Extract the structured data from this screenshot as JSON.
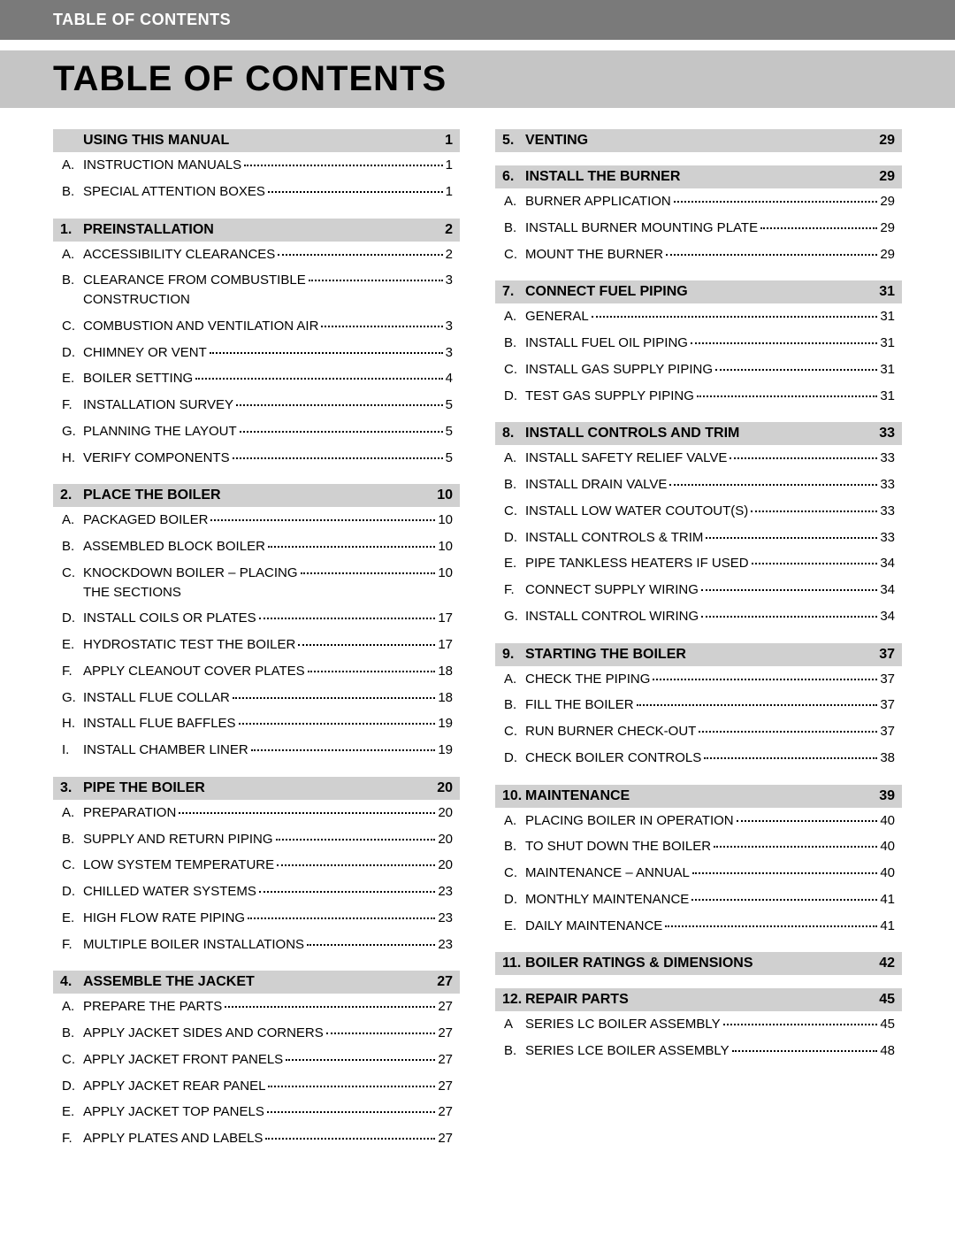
{
  "header": "TABLE OF CONTENTS",
  "title": "TABLE OF CONTENTS",
  "colors": {
    "header_bg": "#7a7a7a",
    "title_bg": "#c5c5c5",
    "section_bg": "#d0d0d0",
    "text": "#000000",
    "header_text": "#ffffff"
  },
  "columns": [
    [
      {
        "num": "",
        "title": "USING THIS MANUAL",
        "page": "1",
        "items": [
          {
            "l": "A.",
            "t": "INSTRUCTION MANUALS",
            "p": "1"
          },
          {
            "l": "B.",
            "t": "SPECIAL ATTENTION BOXES",
            "p": "1"
          }
        ]
      },
      {
        "num": "1.",
        "title": "PREINSTALLATION",
        "page": "2",
        "items": [
          {
            "l": "A.",
            "t": "ACCESSIBILITY CLEARANCES",
            "p": "2"
          },
          {
            "l": "B.",
            "t": "CLEARANCE FROM COMBUSTIBLE\nCONSTRUCTION",
            "p": "3"
          },
          {
            "l": "C.",
            "t": "COMBUSTION AND VENTILATION AIR",
            "p": "3"
          },
          {
            "l": "D.",
            "t": "CHIMNEY OR VENT",
            "p": "3"
          },
          {
            "l": "E.",
            "t": "BOILER SETTING",
            "p": "4"
          },
          {
            "l": "F.",
            "t": "INSTALLATION SURVEY",
            "p": "5"
          },
          {
            "l": "G.",
            "t": "PLANNING THE LAYOUT",
            "p": "5"
          },
          {
            "l": "H.",
            "t": "VERIFY COMPONENTS",
            "p": "5"
          }
        ]
      },
      {
        "num": "2.",
        "title": "PLACE THE BOILER",
        "page": "10",
        "items": [
          {
            "l": "A.",
            "t": "PACKAGED BOILER",
            "p": "10"
          },
          {
            "l": "B.",
            "t": "ASSEMBLED BLOCK BOILER",
            "p": "10"
          },
          {
            "l": "C.",
            "t": "KNOCKDOWN BOILER – PLACING\nTHE SECTIONS",
            "p": "10"
          },
          {
            "l": "D.",
            "t": "INSTALL COILS OR PLATES",
            "p": "17"
          },
          {
            "l": "E.",
            "t": "HYDROSTATIC TEST THE BOILER",
            "p": "17"
          },
          {
            "l": "F.",
            "t": "APPLY CLEANOUT COVER PLATES",
            "p": "18"
          },
          {
            "l": "G.",
            "t": "INSTALL FLUE COLLAR",
            "p": "18"
          },
          {
            "l": "H.",
            "t": "INSTALL FLUE BAFFLES",
            "p": "19"
          },
          {
            "l": "I.",
            "t": "INSTALL CHAMBER LINER",
            "p": "19"
          }
        ]
      },
      {
        "num": "3.",
        "title": "PIPE THE BOILER",
        "page": "20",
        "items": [
          {
            "l": "A.",
            "t": "PREPARATION",
            "p": "20"
          },
          {
            "l": "B.",
            "t": "SUPPLY AND RETURN PIPING",
            "p": "20"
          },
          {
            "l": "C.",
            "t": "LOW SYSTEM TEMPERATURE",
            "p": "20"
          },
          {
            "l": "D.",
            "t": "CHILLED WATER SYSTEMS",
            "p": "23"
          },
          {
            "l": "E.",
            "t": "HIGH FLOW RATE PIPING",
            "p": "23"
          },
          {
            "l": "F.",
            "t": "MULTIPLE BOILER INSTALLATIONS",
            "p": "23"
          }
        ]
      },
      {
        "num": "4.",
        "title": "ASSEMBLE THE JACKET",
        "page": "27",
        "items": [
          {
            "l": "A.",
            "t": "PREPARE THE PARTS",
            "p": "27"
          },
          {
            "l": "B.",
            "t": "APPLY JACKET SIDES AND CORNERS",
            "p": "27"
          },
          {
            "l": "C.",
            "t": "APPLY JACKET FRONT PANELS",
            "p": "27"
          },
          {
            "l": "D.",
            "t": "APPLY JACKET REAR PANEL",
            "p": "27"
          },
          {
            "l": "E.",
            "t": "APPLY JACKET TOP PANELS",
            "p": "27"
          },
          {
            "l": "F.",
            "t": "APPLY PLATES AND LABELS",
            "p": "27"
          }
        ]
      }
    ],
    [
      {
        "num": "5.",
        "title": "VENTING",
        "page": "29",
        "items": []
      },
      {
        "num": "6.",
        "title": "INSTALL THE BURNER",
        "page": "29",
        "items": [
          {
            "l": "A.",
            "t": "BURNER APPLICATION",
            "p": "29"
          },
          {
            "l": "B.",
            "t": "INSTALL BURNER MOUNTING PLATE",
            "p": "29"
          },
          {
            "l": "C.",
            "t": "MOUNT THE BURNER",
            "p": "29"
          }
        ]
      },
      {
        "num": "7.",
        "title": "CONNECT FUEL PIPING",
        "page": "31",
        "items": [
          {
            "l": "A.",
            "t": "GENERAL",
            "p": "31"
          },
          {
            "l": "B.",
            "t": "INSTALL FUEL OIL PIPING",
            "p": "31"
          },
          {
            "l": "C.",
            "t": "INSTALL GAS SUPPLY PIPING",
            "p": "31"
          },
          {
            "l": "D.",
            "t": "TEST GAS SUPPLY PIPING",
            "p": "31"
          }
        ]
      },
      {
        "num": "8.",
        "title": "INSTALL CONTROLS AND TRIM",
        "page": "33",
        "items": [
          {
            "l": "A.",
            "t": "INSTALL SAFETY RELIEF VALVE",
            "p": "33"
          },
          {
            "l": "B.",
            "t": "INSTALL DRAIN VALVE",
            "p": "33"
          },
          {
            "l": "C.",
            "t": "INSTALL LOW WATER COUTOUT(S)",
            "p": "33"
          },
          {
            "l": "D.",
            "t": "INSTALL CONTROLS & TRIM",
            "p": "33"
          },
          {
            "l": "E.",
            "t": "PIPE TANKLESS HEATERS IF USED",
            "p": "34"
          },
          {
            "l": "F.",
            "t": "CONNECT SUPPLY WIRING",
            "p": "34"
          },
          {
            "l": "G.",
            "t": "INSTALL CONTROL WIRING",
            "p": "34"
          }
        ]
      },
      {
        "num": "9.",
        "title": "STARTING THE BOILER",
        "page": "37",
        "items": [
          {
            "l": "A.",
            "t": "CHECK THE PIPING",
            "p": "37"
          },
          {
            "l": "B.",
            "t": "FILL THE BOILER",
            "p": "37"
          },
          {
            "l": "C.",
            "t": "RUN BURNER CHECK-OUT",
            "p": "37"
          },
          {
            "l": "D.",
            "t": "CHECK BOILER CONTROLS",
            "p": "38"
          }
        ]
      },
      {
        "num": "10.",
        "title": "MAINTENANCE",
        "page": "39",
        "items": [
          {
            "l": "A.",
            "t": "PLACING BOILER IN OPERATION",
            "p": "40"
          },
          {
            "l": "B.",
            "t": "TO SHUT DOWN THE BOILER",
            "p": "40"
          },
          {
            "l": "C.",
            "t": "MAINTENANCE – ANNUAL",
            "p": "40"
          },
          {
            "l": "D.",
            "t": "MONTHLY MAINTENANCE",
            "p": "41"
          },
          {
            "l": "E.",
            "t": "DAILY MAINTENANCE",
            "p": "41"
          }
        ]
      },
      {
        "num": "11.",
        "title": "BOILER RATINGS & DIMENSIONS",
        "page": "42",
        "items": []
      },
      {
        "num": "12.",
        "title": "REPAIR PARTS",
        "page": "45",
        "items": [
          {
            "l": "A",
            "t": "SERIES LC BOILER ASSEMBLY",
            "p": "45"
          },
          {
            "l": "B.",
            "t": "SERIES LCE BOILER ASSEMBLY",
            "p": "48"
          }
        ]
      }
    ]
  ]
}
